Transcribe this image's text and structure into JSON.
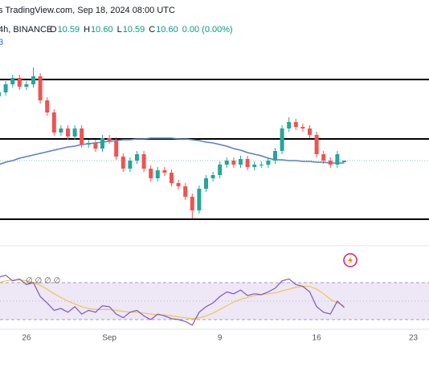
{
  "header": {
    "source": "s TradingView.com, Sep 18, 2024 08:00 UTC",
    "symbol": "4h, BINANCE",
    "ohlc": [
      {
        "label": "O",
        "value": "10.59"
      },
      {
        "label": "H",
        "value": "10.60"
      },
      {
        "label": "L",
        "value": "10.59"
      },
      {
        "label": "C",
        "value": "10.60"
      }
    ],
    "change": "0.00 (0.00%)",
    "line3": "3"
  },
  "chart_data": [
    {
      "type": "candlestick",
      "categories": [
        null,
        null,
        null,
        null,
        "26",
        null,
        null,
        null,
        null,
        null,
        null,
        null,
        null,
        null,
        null,
        null,
        "Sep",
        null,
        null,
        null,
        null,
        null,
        null,
        null,
        null,
        null,
        null,
        null,
        null,
        null,
        null,
        null,
        "9",
        null,
        null,
        null,
        null,
        null,
        null,
        null,
        null,
        null,
        null,
        null,
        null,
        null,
        "16",
        null,
        null,
        null,
        null,
        null,
        null,
        null,
        null,
        null,
        null,
        null,
        null,
        null,
        "23",
        null
      ],
      "open": [
        11.0,
        11.025,
        11.075,
        11.115,
        11.06,
        11.075,
        11.125,
        10.975,
        10.9,
        10.775,
        10.8,
        10.75,
        10.8,
        10.7,
        10.71,
        10.675,
        10.74,
        10.725,
        10.625,
        10.55,
        10.6,
        10.64,
        10.55,
        10.49,
        10.54,
        10.525,
        10.46,
        10.44,
        10.375,
        10.29,
        10.425,
        10.49,
        10.51,
        10.575,
        10.6,
        10.575,
        10.61,
        10.56,
        10.575,
        10.575,
        10.6,
        10.66,
        10.8,
        10.84,
        10.81,
        10.8,
        10.76,
        10.64,
        10.6,
        10.575,
        10.59,
        null,
        null,
        null,
        null,
        null,
        null,
        null,
        null,
        null,
        null,
        null
      ],
      "high": [
        11.045,
        11.095,
        11.135,
        11.135,
        11.095,
        11.18,
        11.145,
        10.995,
        10.92,
        10.82,
        10.82,
        10.82,
        10.82,
        10.73,
        10.73,
        10.76,
        10.76,
        10.745,
        10.645,
        10.62,
        10.66,
        10.66,
        10.57,
        10.56,
        10.56,
        10.545,
        10.48,
        10.46,
        10.395,
        10.445,
        10.51,
        10.53,
        10.595,
        10.62,
        10.62,
        10.63,
        10.63,
        10.595,
        10.595,
        10.62,
        10.68,
        10.82,
        10.87,
        10.86,
        10.83,
        10.82,
        10.78,
        10.66,
        10.62,
        10.66,
        10.6,
        null,
        null,
        null,
        null,
        null,
        null,
        null,
        null,
        null,
        null,
        null
      ],
      "low": [
        10.98,
        11.005,
        11.055,
        11.04,
        11.04,
        11.055,
        10.955,
        10.88,
        10.755,
        10.755,
        10.73,
        10.73,
        10.68,
        10.68,
        10.655,
        10.655,
        10.705,
        10.605,
        10.53,
        10.53,
        10.58,
        10.53,
        10.47,
        10.47,
        10.505,
        10.44,
        10.42,
        10.355,
        10.24,
        10.27,
        10.405,
        10.47,
        10.49,
        10.555,
        10.555,
        10.555,
        10.54,
        10.54,
        10.555,
        10.555,
        10.58,
        10.64,
        10.78,
        10.79,
        10.78,
        10.74,
        10.62,
        10.58,
        10.555,
        10.555,
        10.59,
        null,
        null,
        null,
        null,
        null,
        null,
        null,
        null,
        null,
        null,
        null
      ],
      "close": [
        11.025,
        11.075,
        11.115,
        11.06,
        11.075,
        11.125,
        10.975,
        10.9,
        10.775,
        10.8,
        10.75,
        10.8,
        10.7,
        10.71,
        10.675,
        10.74,
        10.725,
        10.625,
        10.55,
        10.6,
        10.64,
        10.55,
        10.49,
        10.54,
        10.525,
        10.46,
        10.44,
        10.375,
        10.29,
        10.425,
        10.49,
        10.51,
        10.575,
        10.6,
        10.575,
        10.61,
        10.56,
        10.575,
        10.575,
        10.6,
        10.66,
        10.8,
        10.84,
        10.81,
        10.8,
        10.76,
        10.64,
        10.6,
        10.575,
        10.64,
        10.6,
        null,
        null,
        null,
        null,
        null,
        null,
        null,
        null,
        null,
        null,
        null
      ],
      "up_color": "#26a69a",
      "down_color": "#ef5350",
      "ma": {
        "color": "#5b7fbf",
        "values": [
          10.575,
          10.59,
          10.6,
          10.615,
          10.625,
          10.635,
          10.645,
          10.655,
          10.665,
          10.675,
          10.685,
          10.69,
          10.7,
          10.705,
          10.71,
          10.715,
          10.72,
          10.725,
          10.73,
          10.73,
          10.735,
          10.735,
          10.74,
          10.74,
          10.74,
          10.74,
          10.735,
          10.735,
          10.73,
          10.725,
          10.715,
          10.71,
          10.7,
          10.69,
          10.675,
          10.665,
          10.65,
          10.64,
          10.63,
          10.615,
          10.605,
          10.605,
          10.6,
          10.6,
          10.595,
          10.595,
          10.59,
          10.59,
          10.585,
          10.585,
          10.585,
          null,
          null,
          null,
          null,
          null,
          null,
          null,
          null,
          null,
          null,
          null
        ]
      },
      "levels": [
        11.105,
        10.735,
        10.235
      ],
      "level_color": "#000000",
      "price_line": 10.6,
      "price_line_color": "#7ec8c0",
      "ylim": [
        10.15,
        11.6
      ]
    },
    {
      "type": "line",
      "values": [
        76,
        78,
        72,
        74,
        68,
        70,
        55,
        48,
        40,
        42,
        38,
        44,
        36,
        40,
        38,
        45,
        44,
        36,
        32,
        38,
        40,
        34,
        30,
        36,
        34,
        31,
        30,
        28,
        24,
        38,
        44,
        48,
        55,
        60,
        58,
        62,
        56,
        58,
        57,
        60,
        64,
        72,
        74,
        68,
        66,
        60,
        44,
        38,
        36,
        50,
        43,
        null,
        null,
        null,
        null,
        null,
        null,
        null,
        null,
        null,
        null,
        null
      ],
      "color": "#7e57c2",
      "ma_values": [
        70,
        72,
        73,
        73,
        72,
        70,
        67,
        63,
        58,
        54,
        50,
        47,
        44,
        42,
        41,
        41,
        41,
        40,
        39,
        38,
        38,
        37,
        36,
        35,
        35,
        34,
        33,
        32,
        31,
        32,
        34,
        37,
        41,
        45,
        49,
        52,
        54,
        56,
        57,
        58,
        59,
        61,
        63,
        65,
        66,
        66,
        63,
        58,
        52,
        48,
        45,
        null,
        null,
        null,
        null,
        null,
        null,
        null,
        null,
        null,
        null,
        null
      ],
      "ma_color": "#f2c744",
      "band": [
        30,
        70
      ],
      "midline": 50,
      "band_color": "#ede7f6",
      "legend": "∅ ∅ ∅ ∅",
      "ylim": [
        0,
        100
      ]
    }
  ]
}
